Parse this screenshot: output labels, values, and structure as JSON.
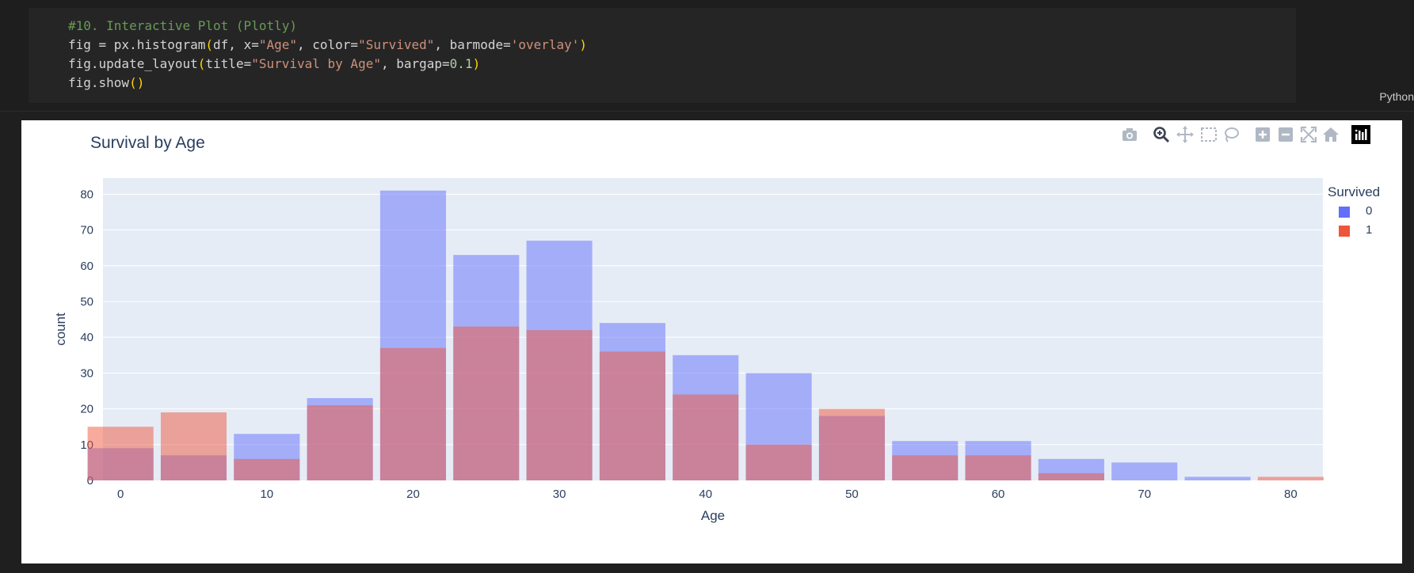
{
  "code_cell": {
    "lines": [
      "#10. Interactive Plot (Plotly)",
      "fig = px.histogram(df, x=\"Age\", color=\"Survived\", barmode='overlay')",
      "fig.update_layout(title=\"Survival by Age\", bargap=0.1)",
      "fig.show()"
    ],
    "language": "Python"
  },
  "modebar": {
    "buttons": [
      "camera-icon",
      "zoom-icon",
      "pan-icon",
      "box-select-icon",
      "lasso-icon",
      "zoom-in-icon",
      "zoom-out-icon",
      "autoscale-icon",
      "reset-axes-icon",
      "plotly-logo-icon"
    ]
  },
  "chart_data": {
    "type": "bar",
    "title": "Survival by Age",
    "xlabel": "Age",
    "ylabel": "count",
    "barmode": "overlay",
    "bin_size": 5,
    "x_bin_starts": [
      0,
      5,
      10,
      15,
      20,
      25,
      30,
      35,
      40,
      45,
      50,
      55,
      60,
      65,
      70,
      75,
      80
    ],
    "xlim": [
      -1.2,
      82.2
    ],
    "ylim": [
      0,
      84.5
    ],
    "x_ticks": [
      0,
      10,
      20,
      30,
      40,
      50,
      60,
      70,
      80
    ],
    "y_ticks": [
      0,
      10,
      20,
      30,
      40,
      50,
      60,
      70,
      80
    ],
    "grid": true,
    "legend_title": "Survived",
    "legend_position": "top-right",
    "series": [
      {
        "name": "0",
        "color": "#636efa",
        "values": [
          9,
          7,
          13,
          23,
          81,
          63,
          67,
          44,
          35,
          30,
          18,
          11,
          11,
          6,
          5,
          1,
          0
        ]
      },
      {
        "name": "1",
        "color": "#ef553b",
        "values": [
          15,
          19,
          6,
          21,
          37,
          43,
          42,
          36,
          24,
          10,
          20,
          7,
          7,
          2,
          0,
          0,
          1
        ]
      }
    ]
  },
  "colors": {
    "plot_bg": "#e5ecf6",
    "text": "#2a3f5f",
    "code_comment": "#6a9955",
    "code_string": "#ce9178",
    "code_number": "#b5cea8",
    "code_paren": "#ffd700"
  }
}
